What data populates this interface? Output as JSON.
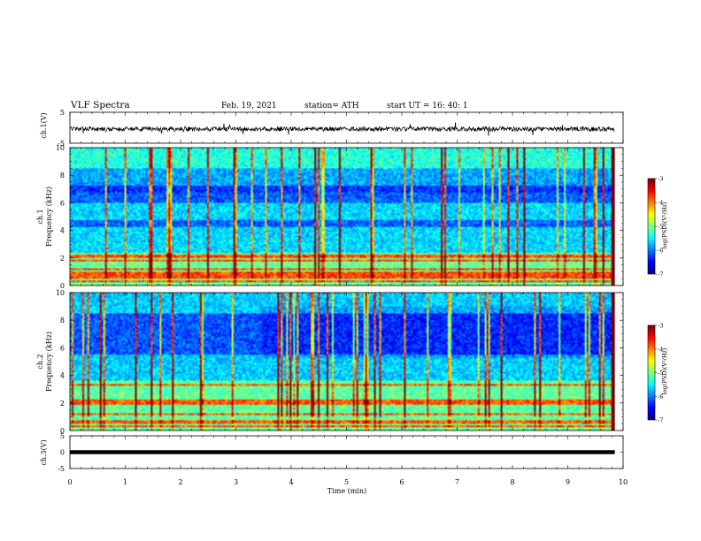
{
  "header": {
    "title": "VLF Spectra",
    "date": "Feb. 19, 2021",
    "station": "station= ATH",
    "start": "start UT =  16: 40: 1"
  },
  "chart_data": [
    {
      "type": "line",
      "panel": "ch1-waveform",
      "ylabel": "ch.1(V)",
      "ylim": [
        -5,
        5
      ],
      "yticks": [
        "5",
        "-5"
      ],
      "xlim": [
        0,
        10
      ],
      "baseline": 0
    },
    {
      "type": "heatmap",
      "panel": "ch1-spectrogram",
      "ylabel": [
        "ch.1",
        "Frequency (kHz)"
      ],
      "ylim": [
        0,
        10
      ],
      "yticks": [
        "0",
        "2",
        "4",
        "6",
        "8",
        "10"
      ],
      "xlim": [
        0,
        10
      ],
      "colorbar": {
        "label": "log(PSD)(V²/Hz)",
        "range": [
          -7,
          -3
        ],
        "ticks": [
          "-3",
          "-4",
          "-5",
          "-6",
          "-7"
        ]
      },
      "bands_khz": [
        0.3,
        0.6,
        0.9,
        1.2,
        1.8,
        2.1,
        2.2
      ],
      "quiet_bands_khz": [
        [
          4.2,
          4.8
        ],
        [
          6.0,
          7.2
        ]
      ]
    },
    {
      "type": "heatmap",
      "panel": "ch2-spectrogram",
      "ylabel": [
        "ch.2",
        "Frequency (kHz)"
      ],
      "ylim": [
        0,
        10
      ],
      "yticks": [
        "0",
        "2",
        "4",
        "6",
        "8",
        "10"
      ],
      "xlim": [
        0,
        10
      ],
      "colorbar": {
        "label": "log(PSD)(V²/Hz)",
        "range": [
          -7,
          -3
        ],
        "ticks": [
          "-3",
          "-4",
          "-5",
          "-6",
          "-7"
        ]
      },
      "bands_khz": [
        0.3,
        0.6,
        1.2,
        2.0,
        2.2,
        3.3
      ],
      "quiet_bands_khz": [
        [
          5.5,
          8.5
        ]
      ]
    },
    {
      "type": "line",
      "panel": "ch3-waveform",
      "ylabel": "ch.3(V)",
      "ylim": [
        -5,
        5
      ],
      "yticks": [
        "5",
        "0",
        "-5"
      ],
      "xlim": [
        0,
        10
      ],
      "baseline": 0
    }
  ],
  "xaxis": {
    "label": "Time (min)",
    "ticks": [
      "0",
      "1",
      "2",
      "3",
      "4",
      "5",
      "6",
      "7",
      "8",
      "9",
      "10"
    ]
  },
  "colors": {
    "background": "#ffffff",
    "frame": "#000000"
  }
}
